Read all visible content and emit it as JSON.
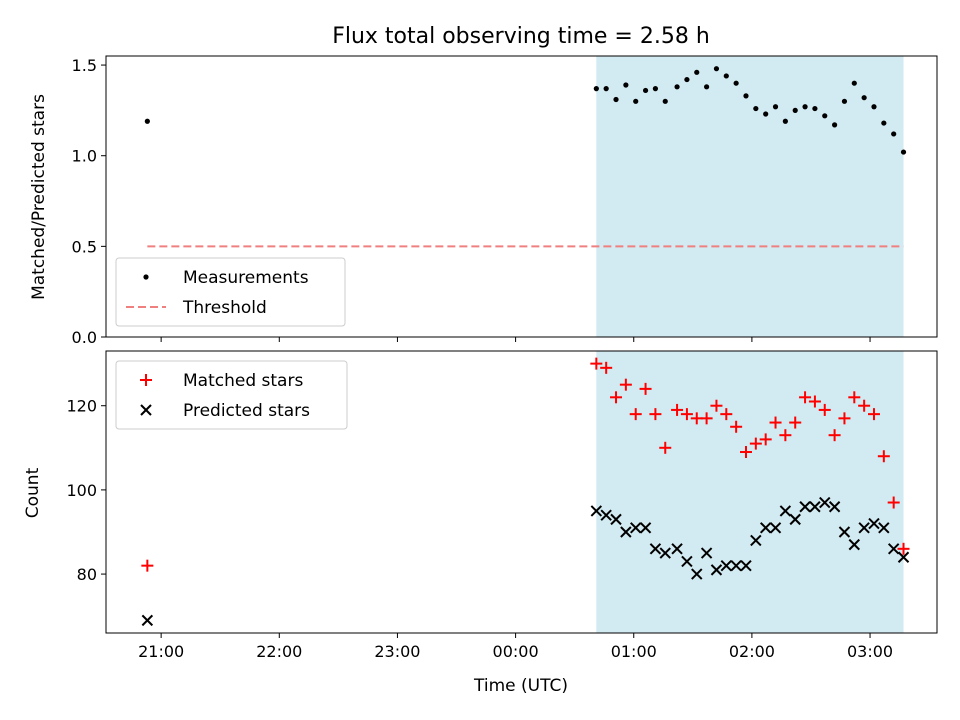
{
  "chart_data": {
    "title": "Flux total observing time = 2.58 h",
    "xlabel": "Time (UTC)",
    "x_ticks": [
      "21:00",
      "22:00",
      "23:00",
      "00:00",
      "01:00",
      "02:00",
      "03:00"
    ],
    "shaded_span": [
      "00:41",
      "03:17"
    ],
    "colors": {
      "shade": "#add8e6",
      "measurements": "#000000",
      "threshold": "#f08080",
      "matched": "#ff0000",
      "predicted": "#000000"
    },
    "panels": [
      {
        "type": "scatter",
        "ylabel": "Matched/Predicted stars",
        "ylim": [
          0,
          1.55
        ],
        "y_ticks": [
          "0.0",
          "0.5",
          "1.0",
          "1.5"
        ],
        "legend_location": "lower-left",
        "series": [
          {
            "name": "Measurements",
            "marker": "dot",
            "x": [
              "20:53",
              "00:41",
              "00:46",
              "00:51",
              "00:56",
              "01:01",
              "01:06",
              "01:11",
              "01:16",
              "01:22",
              "01:27",
              "01:32",
              "01:37",
              "01:42",
              "01:47",
              "01:52",
              "01:57",
              "02:02",
              "02:07",
              "02:12",
              "02:17",
              "02:22",
              "02:27",
              "02:32",
              "02:37",
              "02:42",
              "02:47",
              "02:52",
              "02:57",
              "03:02",
              "03:07",
              "03:12",
              "03:17"
            ],
            "y": [
              1.19,
              1.37,
              1.37,
              1.31,
              1.39,
              1.3,
              1.36,
              1.37,
              1.3,
              1.38,
              1.42,
              1.46,
              1.38,
              1.48,
              1.44,
              1.4,
              1.33,
              1.26,
              1.23,
              1.27,
              1.19,
              1.25,
              1.27,
              1.26,
              1.22,
              1.17,
              1.3,
              1.4,
              1.32,
              1.27,
              1.18,
              1.12,
              1.02
            ]
          },
          {
            "name": "Threshold",
            "style": "dashed-line",
            "x": [
              "20:53",
              "03:17"
            ],
            "y": [
              0.5,
              0.5
            ]
          }
        ]
      },
      {
        "type": "scatter",
        "ylabel": "Count",
        "ylim": [
          66,
          133
        ],
        "y_ticks": [
          "80",
          "100",
          "120"
        ],
        "legend_location": "upper-left",
        "series": [
          {
            "name": "Matched stars",
            "marker": "plus",
            "x": [
              "20:53",
              "00:41",
              "00:46",
              "00:51",
              "00:56",
              "01:01",
              "01:06",
              "01:11",
              "01:16",
              "01:22",
              "01:27",
              "01:32",
              "01:37",
              "01:42",
              "01:47",
              "01:52",
              "01:57",
              "02:02",
              "02:07",
              "02:12",
              "02:17",
              "02:22",
              "02:27",
              "02:32",
              "02:37",
              "02:42",
              "02:47",
              "02:52",
              "02:57",
              "03:02",
              "03:07",
              "03:12",
              "03:17"
            ],
            "y": [
              82,
              130,
              129,
              122,
              125,
              118,
              124,
              118,
              110,
              119,
              118,
              117,
              117,
              120,
              118,
              115,
              109,
              111,
              112,
              116,
              113,
              116,
              122,
              121,
              119,
              113,
              117,
              122,
              120,
              118,
              108,
              97,
              86
            ]
          },
          {
            "name": "Predicted stars",
            "marker": "cross",
            "x": [
              "20:53",
              "00:41",
              "00:46",
              "00:51",
              "00:56",
              "01:01",
              "01:06",
              "01:11",
              "01:16",
              "01:22",
              "01:27",
              "01:32",
              "01:37",
              "01:42",
              "01:47",
              "01:52",
              "01:57",
              "02:02",
              "02:07",
              "02:12",
              "02:17",
              "02:22",
              "02:27",
              "02:32",
              "02:37",
              "02:42",
              "02:47",
              "02:52",
              "02:57",
              "03:02",
              "03:07",
              "03:12",
              "03:17"
            ],
            "y": [
              69,
              95,
              94,
              93,
              90,
              91,
              91,
              86,
              85,
              86,
              83,
              80,
              85,
              81,
              82,
              82,
              82,
              88,
              91,
              91,
              95,
              93,
              96,
              96,
              97,
              96,
              90,
              87,
              91,
              92,
              91,
              86,
              84
            ]
          }
        ]
      }
    ]
  }
}
